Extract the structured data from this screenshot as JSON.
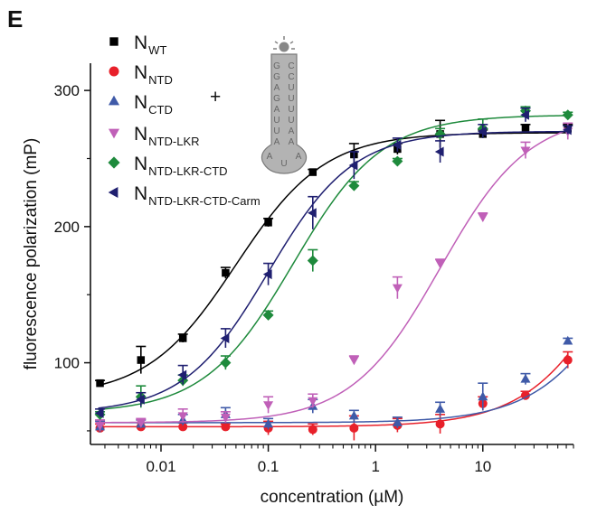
{
  "panel_label": "E",
  "plus_sign": "+",
  "rna_probe": {
    "left_strand": [
      "G",
      "G",
      "A",
      "G",
      "A",
      "U",
      "U",
      "A"
    ],
    "right_strand": [
      "C",
      "C",
      "U",
      "U",
      "U",
      "U",
      "A",
      "A"
    ],
    "loop": [
      "A",
      "U",
      "A"
    ]
  },
  "chart_data": {
    "type": "scatter",
    "title": "",
    "xlabel": "concentration (µM)",
    "ylabel": "fluorescence polarization (mP)",
    "xscale": "log",
    "xlim": [
      0.0022,
      70
    ],
    "ylim": [
      40,
      320
    ],
    "xticks": [
      0.01,
      0.1,
      1,
      10
    ],
    "xtick_labels": [
      "0.01",
      "0.1",
      "1",
      "10"
    ],
    "yticks": [
      100,
      200,
      300
    ],
    "ytick_labels": [
      "100",
      "200",
      "300"
    ],
    "grid": false,
    "legend_position": "top-left",
    "x": [
      0.0027,
      0.0065,
      0.016,
      0.04,
      0.1,
      0.26,
      0.63,
      1.6,
      4,
      10,
      25,
      62
    ],
    "series": [
      {
        "name_main": "N",
        "name_sub": "WT",
        "marker": "square",
        "color": "#000000",
        "values": [
          85,
          102,
          118,
          166,
          203,
          240,
          253,
          257,
          268,
          268,
          272,
          272
        ],
        "errors": [
          2,
          10,
          3,
          4,
          3,
          2,
          8,
          4,
          10,
          3,
          3,
          3
        ],
        "fit": {
          "bottom": 75,
          "top": 269,
          "ec50": 0.05,
          "hill": 1.05
        }
      },
      {
        "name_main": "N",
        "name_sub": "NTD",
        "marker": "circle",
        "color": "#e8202a",
        "values": [
          52,
          53,
          53,
          53,
          52,
          51,
          52,
          54,
          55,
          70,
          76,
          102
        ],
        "errors": [
          3,
          3,
          3,
          2,
          5,
          4,
          9,
          5,
          7,
          5,
          3,
          6
        ],
        "fit": {
          "bottom": 53,
          "top": 320,
          "ec50": 250,
          "hill": 1.0
        }
      },
      {
        "name_main": "N",
        "name_sub": "CTD",
        "marker": "triangle-up",
        "color": "#3f5aa8",
        "values": [
          53,
          55,
          58,
          62,
          55,
          68,
          61,
          56,
          66,
          75,
          88,
          116
        ],
        "errors": [
          4,
          3,
          4,
          5,
          4,
          5,
          4,
          4,
          5,
          10,
          4,
          2
        ],
        "fit": {
          "bottom": 56,
          "top": 320,
          "ec50": 330,
          "hill": 1.0
        }
      },
      {
        "name_main": "N",
        "name_sub": "NTD-LKR",
        "marker": "triangle-down",
        "color": "#c060b8",
        "values": [
          54,
          56,
          61,
          60,
          69,
          72,
          102,
          155,
          173,
          207,
          256,
          270
        ],
        "errors": [
          4,
          3,
          5,
          4,
          6,
          5,
          3,
          8,
          3,
          3,
          6,
          6
        ],
        "fit": {
          "bottom": 56,
          "top": 283,
          "ec50": 4.0,
          "hill": 1.05
        }
      },
      {
        "name_main": "N",
        "name_sub": "NTD-LKR-CTD",
        "marker": "diamond",
        "color": "#1e8a3c",
        "values": [
          62,
          75,
          87,
          100,
          135,
          175,
          230,
          248,
          268,
          272,
          285,
          282
        ],
        "errors": [
          2,
          8,
          4,
          5,
          3,
          8,
          3,
          2,
          4,
          7,
          3,
          2
        ],
        "fit": {
          "bottom": 63,
          "top": 282,
          "ec50": 0.17,
          "hill": 1.05
        }
      },
      {
        "name_main": "N",
        "name_sub": "NTD-LKR-CTD-Carm",
        "marker": "triangle-left",
        "color": "#1f1f70",
        "values": [
          63,
          73,
          91,
          118,
          165,
          210,
          245,
          260,
          255,
          270,
          282,
          271
        ],
        "errors": [
          3,
          5,
          7,
          7,
          8,
          12,
          10,
          5,
          8,
          5,
          5,
          3
        ],
        "fit": {
          "bottom": 63,
          "top": 270,
          "ec50": 0.1,
          "hill": 1.1
        }
      }
    ]
  }
}
